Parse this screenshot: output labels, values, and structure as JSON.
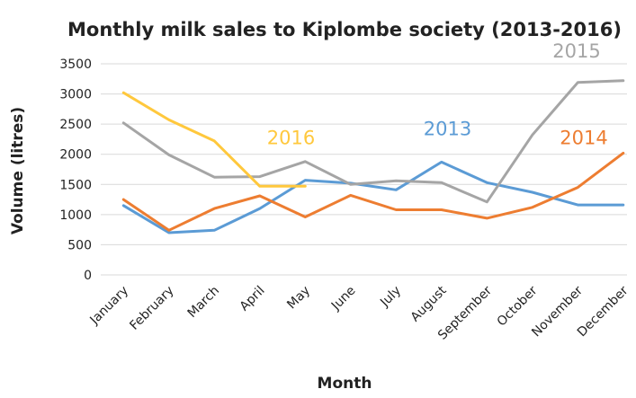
{
  "chart_data": {
    "type": "line",
    "title": "Monthly milk sales to Kiplombe society (2013-2016)",
    "xlabel": "Month",
    "ylabel": "Volume (litres)",
    "ylim": [
      0,
      3500
    ],
    "yticks": [
      0,
      500,
      1000,
      1500,
      2000,
      2500,
      3000,
      3500
    ],
    "grid": true,
    "legend": "none (series labels placed on chart)",
    "categories": [
      "January",
      "February",
      "March",
      "April",
      "May",
      "June",
      "July",
      "August",
      "September",
      "October",
      "November",
      "December"
    ],
    "series": [
      {
        "name": "2013",
        "color": "#5B9BD5",
        "values": [
          1150,
          700,
          740,
          1100,
          1570,
          1520,
          1410,
          1870,
          1530,
          1370,
          1160,
          1160
        ]
      },
      {
        "name": "2014",
        "color": "#ED7D31",
        "values": [
          1250,
          740,
          1100,
          1310,
          960,
          1320,
          1080,
          1080,
          940,
          1120,
          1450,
          2020
        ]
      },
      {
        "name": "2015",
        "color": "#A5A5A5",
        "values": [
          2520,
          1990,
          1620,
          1630,
          1880,
          1500,
          1560,
          1530,
          1210,
          2320,
          3190,
          3220
        ]
      },
      {
        "name": "2016",
        "color": "#FFC83D",
        "values": [
          3020,
          2570,
          2220,
          1470,
          1470,
          null,
          null,
          null,
          null,
          null,
          null,
          null
        ]
      }
    ]
  }
}
